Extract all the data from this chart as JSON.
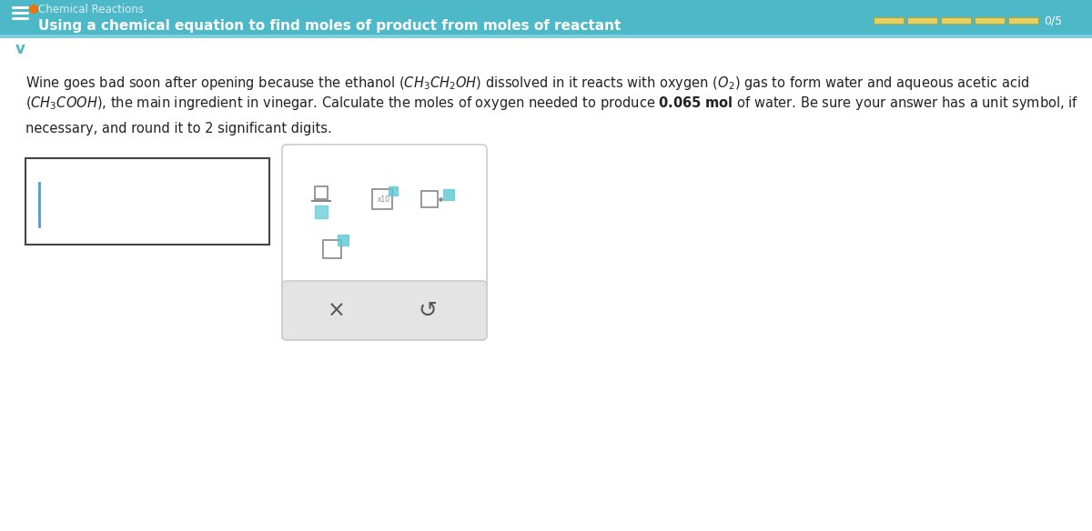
{
  "header_bg": "#4db8c8",
  "header_text": "Using a chemical equation to find moles of product from moles of reactant",
  "header_text_color": "#ffffff",
  "header_font_size": 11,
  "score_bar_color": "#e8d060",
  "score_bar_segments": 5,
  "hamburger_color": "#ffffff",
  "orange_dot_color": "#e8760a",
  "body_bg": "#ffffff",
  "body_text_color": "#222222",
  "chevron_color": "#4db8c8",
  "input_box_border": "#444444",
  "input_box_bg": "#ffffff",
  "toolbar_bg": "#ffffff",
  "toolbar_border": "#cccccc",
  "toolbar_accent": "#5bc8d4",
  "toolbar_box_gray": "#888888",
  "button_area_bg": "#e4e4e4",
  "button_text_color": "#555555",
  "score_label": "0/5",
  "accent_line_color": "#7ecfdc",
  "header_small_text": "Chemical Reactions",
  "header_small_color": "#ddeeee"
}
